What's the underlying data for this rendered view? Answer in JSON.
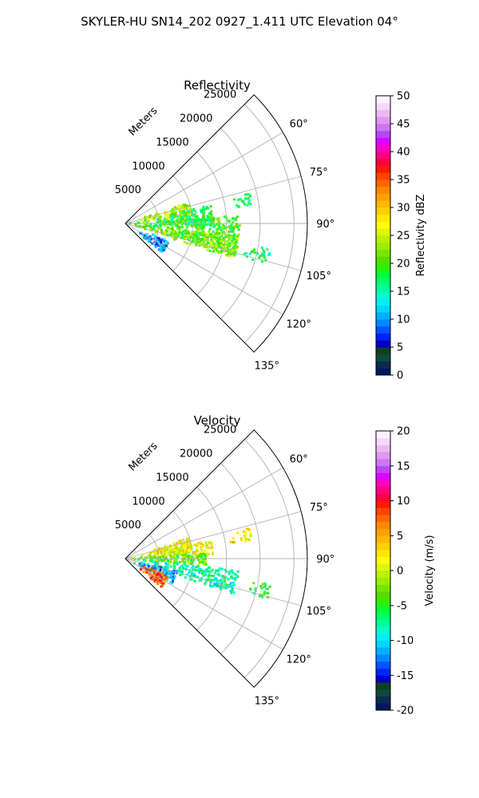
{
  "suptitle": "SKYLER-HU  SN14_202  0927_1.411 UTC Elevation 04°",
  "chart_data": [
    {
      "type": "heatmap",
      "subtype": "polar-sector-radar",
      "title": "Reflectivity",
      "radius_label": "Meters",
      "radius_ticks": [
        5000,
        10000,
        15000,
        20000,
        25000
      ],
      "rlim": [
        0,
        27000
      ],
      "theta_ticks": [
        "60°",
        "75°",
        "90°",
        "105°",
        "120°",
        "135°"
      ],
      "theta_tick_values": [
        60,
        75,
        90,
        105,
        120,
        135
      ],
      "theta_range_deg": [
        45,
        135
      ],
      "grid": true,
      "colorbar": {
        "label": "Reflectivity dBZ",
        "min": 0,
        "max": 50,
        "ticks": [
          0,
          5,
          10,
          15,
          20,
          25,
          30,
          35,
          40,
          45,
          50
        ],
        "colors": [
          "#001a5e",
          "#0a2a52",
          "#0d4a3a",
          "#123f1f",
          "#0000c8",
          "#0022ff",
          "#0055ff",
          "#0088ff",
          "#00b0ff",
          "#00d4ff",
          "#00f0f0",
          "#00ffcc",
          "#00ff99",
          "#00ff66",
          "#00ff33",
          "#33ee00",
          "#55dd00",
          "#77e600",
          "#99ee00",
          "#bbf000",
          "#ddf800",
          "#ffff00",
          "#ffe800",
          "#ffd000",
          "#ffb800",
          "#ff9f00",
          "#ff8800",
          "#ff6600",
          "#ff4400",
          "#ff1a00",
          "#ff0040",
          "#ff0080",
          "#ff00c0",
          "#dd00ff",
          "#bb44ff",
          "#cc77ee",
          "#dd99f0",
          "#eeb8f5",
          "#f6d8fa",
          "#fff0ff"
        ]
      },
      "echo_regions": [
        {
          "name": "main-band",
          "az": [
            86,
            106
          ],
          "r": [
            0,
            17000
          ],
          "value": 20
        },
        {
          "name": "upper-finger",
          "az": [
            72,
            85
          ],
          "r": [
            2000,
            10000
          ],
          "value": 24
        },
        {
          "name": "upper-band",
          "az": [
            78,
            92
          ],
          "r": [
            4000,
            13000
          ],
          "value": 18
        },
        {
          "name": "lower-band",
          "az": [
            96,
            108
          ],
          "r": [
            3000,
            17000
          ],
          "value": 22
        },
        {
          "name": "cell-a",
          "az": [
            76,
            82
          ],
          "r": [
            15500,
            19000
          ],
          "value": 18
        },
        {
          "name": "near-sw",
          "az": [
            112,
            128
          ],
          "r": [
            2000,
            7000
          ],
          "value": 10
        },
        {
          "name": "far-band",
          "az": [
            100,
            106
          ],
          "r": [
            18000,
            22000
          ],
          "value": 17
        }
      ]
    },
    {
      "type": "heatmap",
      "subtype": "polar-sector-radar",
      "title": "Velocity",
      "radius_label": "Meters",
      "radius_ticks": [
        5000,
        10000,
        15000,
        20000,
        25000
      ],
      "rlim": [
        0,
        27000
      ],
      "theta_ticks": [
        "60°",
        "75°",
        "90°",
        "105°",
        "120°",
        "135°"
      ],
      "theta_tick_values": [
        60,
        75,
        90,
        105,
        120,
        135
      ],
      "theta_range_deg": [
        45,
        135
      ],
      "grid": true,
      "colorbar": {
        "label": "Velocity (m/s)",
        "min": -20,
        "max": 20,
        "ticks": [
          -20,
          -15,
          -10,
          -5,
          0,
          5,
          10,
          15,
          20
        ],
        "colors": [
          "#001a5e",
          "#0a2a52",
          "#0d4a3a",
          "#123f1f",
          "#0000c8",
          "#0022ff",
          "#0055ff",
          "#0088ff",
          "#00b0ff",
          "#00d4ff",
          "#00f0f0",
          "#00ffcc",
          "#00ff99",
          "#00ff66",
          "#00ff33",
          "#33ee00",
          "#55dd00",
          "#77e600",
          "#99ee00",
          "#bbf000",
          "#ddf800",
          "#ffff00",
          "#ffe800",
          "#ffd000",
          "#ffb800",
          "#ff9f00",
          "#ff8800",
          "#ff6600",
          "#ff4400",
          "#ff1a00",
          "#ff0040",
          "#ff0080",
          "#ff00c0",
          "#dd00ff",
          "#bb44ff",
          "#cc77ee",
          "#dd99f0",
          "#eeb8f5",
          "#f6d8fa",
          "#fff0ff"
        ]
      },
      "echo_regions": [
        {
          "name": "upper-finger",
          "az": [
            72,
            85
          ],
          "r": [
            2000,
            10000
          ],
          "value": 2
        },
        {
          "name": "upper-band",
          "az": [
            78,
            88
          ],
          "r": [
            4000,
            13000
          ],
          "value": 1
        },
        {
          "name": "core-band",
          "az": [
            86,
            96
          ],
          "r": [
            0,
            12000
          ],
          "value": -3
        },
        {
          "name": "lower-band",
          "az": [
            96,
            108
          ],
          "r": [
            2000,
            17000
          ],
          "value": -8
        },
        {
          "name": "near-flank",
          "az": [
            104,
            118
          ],
          "r": [
            1000,
            8000
          ],
          "value": -12
        },
        {
          "name": "cell-a",
          "az": [
            76,
            82
          ],
          "r": [
            15500,
            19000
          ],
          "value": 2
        },
        {
          "name": "near-sw",
          "az": [
            112,
            128
          ],
          "r": [
            2000,
            7000
          ],
          "value": 8
        },
        {
          "name": "far-band",
          "az": [
            100,
            106
          ],
          "r": [
            18000,
            22000
          ],
          "value": -5
        }
      ]
    }
  ]
}
